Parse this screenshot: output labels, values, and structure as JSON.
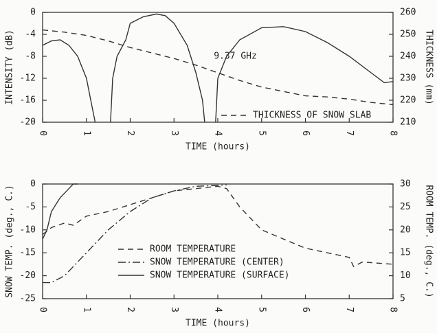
{
  "chart_data": [
    {
      "type": "line",
      "xlabel": "TIME (hours)",
      "ylabel": "INTENSITY (dB)",
      "y2label": "THICKNESS (mm)",
      "annotation": "9.37 GHz",
      "xlim": [
        0,
        8
      ],
      "xticks": [
        0,
        1,
        2,
        3,
        4,
        5,
        6,
        7,
        8
      ],
      "ylim": [
        -20,
        0
      ],
      "yticks": [
        0,
        -4,
        -8,
        -12,
        -16,
        -20
      ],
      "y2lim": [
        210,
        260
      ],
      "y2ticks": [
        260,
        250,
        240,
        230,
        220,
        210
      ],
      "legend": "lower right",
      "series": [
        {
          "color": "#333333",
          "dash": "solid",
          "x": [
            0,
            0.2,
            0.4,
            0.6,
            0.8,
            1.0,
            1.1,
            1.2,
            1.5,
            1.55,
            1.6,
            1.7,
            1.9,
            2.0,
            2.3,
            2.6,
            2.8,
            3.0,
            3.3,
            3.5,
            3.65,
            3.7,
            3.9,
            3.95,
            4.0,
            4.2,
            4.5,
            5.0,
            5.5,
            6.0,
            6.5,
            7.0,
            7.5,
            7.8,
            8.0
          ],
          "values": [
            -6,
            -5.2,
            -5,
            -6,
            -8,
            -12,
            -16,
            -20,
            null,
            -20,
            -12,
            -8,
            -5,
            -2,
            -0.8,
            -0.3,
            -0.6,
            -2,
            -6,
            -11,
            -16,
            -20,
            null,
            -20,
            -12,
            -8,
            -5,
            -2.8,
            -2.6,
            -3.5,
            -5.5,
            -8,
            -11,
            -12.8,
            -12.6
          ]
        },
        {
          "name": "THICKNESS OF SNOW SLAB",
          "color": "#333333",
          "dash": "dashed",
          "axis": "y2",
          "x": [
            0,
            0.5,
            1,
            1.5,
            2,
            2.5,
            3,
            3.5,
            4,
            4.5,
            5,
            5.5,
            6,
            6.5,
            7,
            7.5,
            8
          ],
          "values": [
            252,
            251,
            249.5,
            247,
            244,
            241.5,
            239,
            236,
            232.5,
            229,
            226,
            224,
            222,
            221.5,
            220.5,
            219,
            218
          ]
        }
      ]
    },
    {
      "type": "line",
      "xlabel": "TIME (hours)",
      "ylabel": "SNOW TEMP. (deg., C.)",
      "y2label": "ROOM TEMP. (deg., C.)",
      "xlim": [
        0,
        8
      ],
      "xticks": [
        0,
        1,
        2,
        3,
        4,
        5,
        6,
        7,
        8
      ],
      "ylim": [
        -25,
        0
      ],
      "yticks": [
        0,
        -5,
        -10,
        -15,
        -20,
        -25
      ],
      "y2lim": [
        5,
        30
      ],
      "y2ticks": [
        30,
        25,
        20,
        15,
        10,
        5
      ],
      "legend": "lower center",
      "series": [
        {
          "name": "ROOM TEMPERATURE",
          "color": "#333333",
          "dash": "dashed",
          "axis": "y2",
          "x": [
            0,
            0.2,
            0.5,
            0.7,
            1,
            1.5,
            2,
            2.5,
            3,
            3.5,
            4,
            4.2,
            4.5,
            5,
            5.5,
            6,
            6.5,
            7,
            7.1,
            7.3,
            8
          ],
          "values": [
            19,
            20.5,
            21.5,
            21,
            23,
            24,
            25.5,
            27,
            28.5,
            29,
            29.5,
            29,
            25,
            20,
            18,
            16,
            15,
            14,
            12,
            13,
            12.5
          ]
        },
        {
          "name": "SNOW TEMPERATURE (CENTER)",
          "color": "#333333",
          "dash": "dashdot",
          "x": [
            0,
            0.2,
            0.5,
            1,
            1.5,
            2,
            2.5,
            3,
            3.5,
            4,
            4.2
          ],
          "values": [
            -21.5,
            -21.5,
            -20,
            -15,
            -10,
            -6,
            -3,
            -1.5,
            -0.5,
            -0.3,
            -0.2
          ]
        },
        {
          "name": "SNOW TEMPERATURE (SURFACE)",
          "color": "#333333",
          "dash": "solid",
          "x": [
            0,
            0.1,
            0.2,
            0.4,
            0.6,
            0.7,
            0.8
          ],
          "values": [
            -12,
            -10,
            -6,
            -3,
            -1,
            0,
            0
          ]
        }
      ]
    }
  ]
}
